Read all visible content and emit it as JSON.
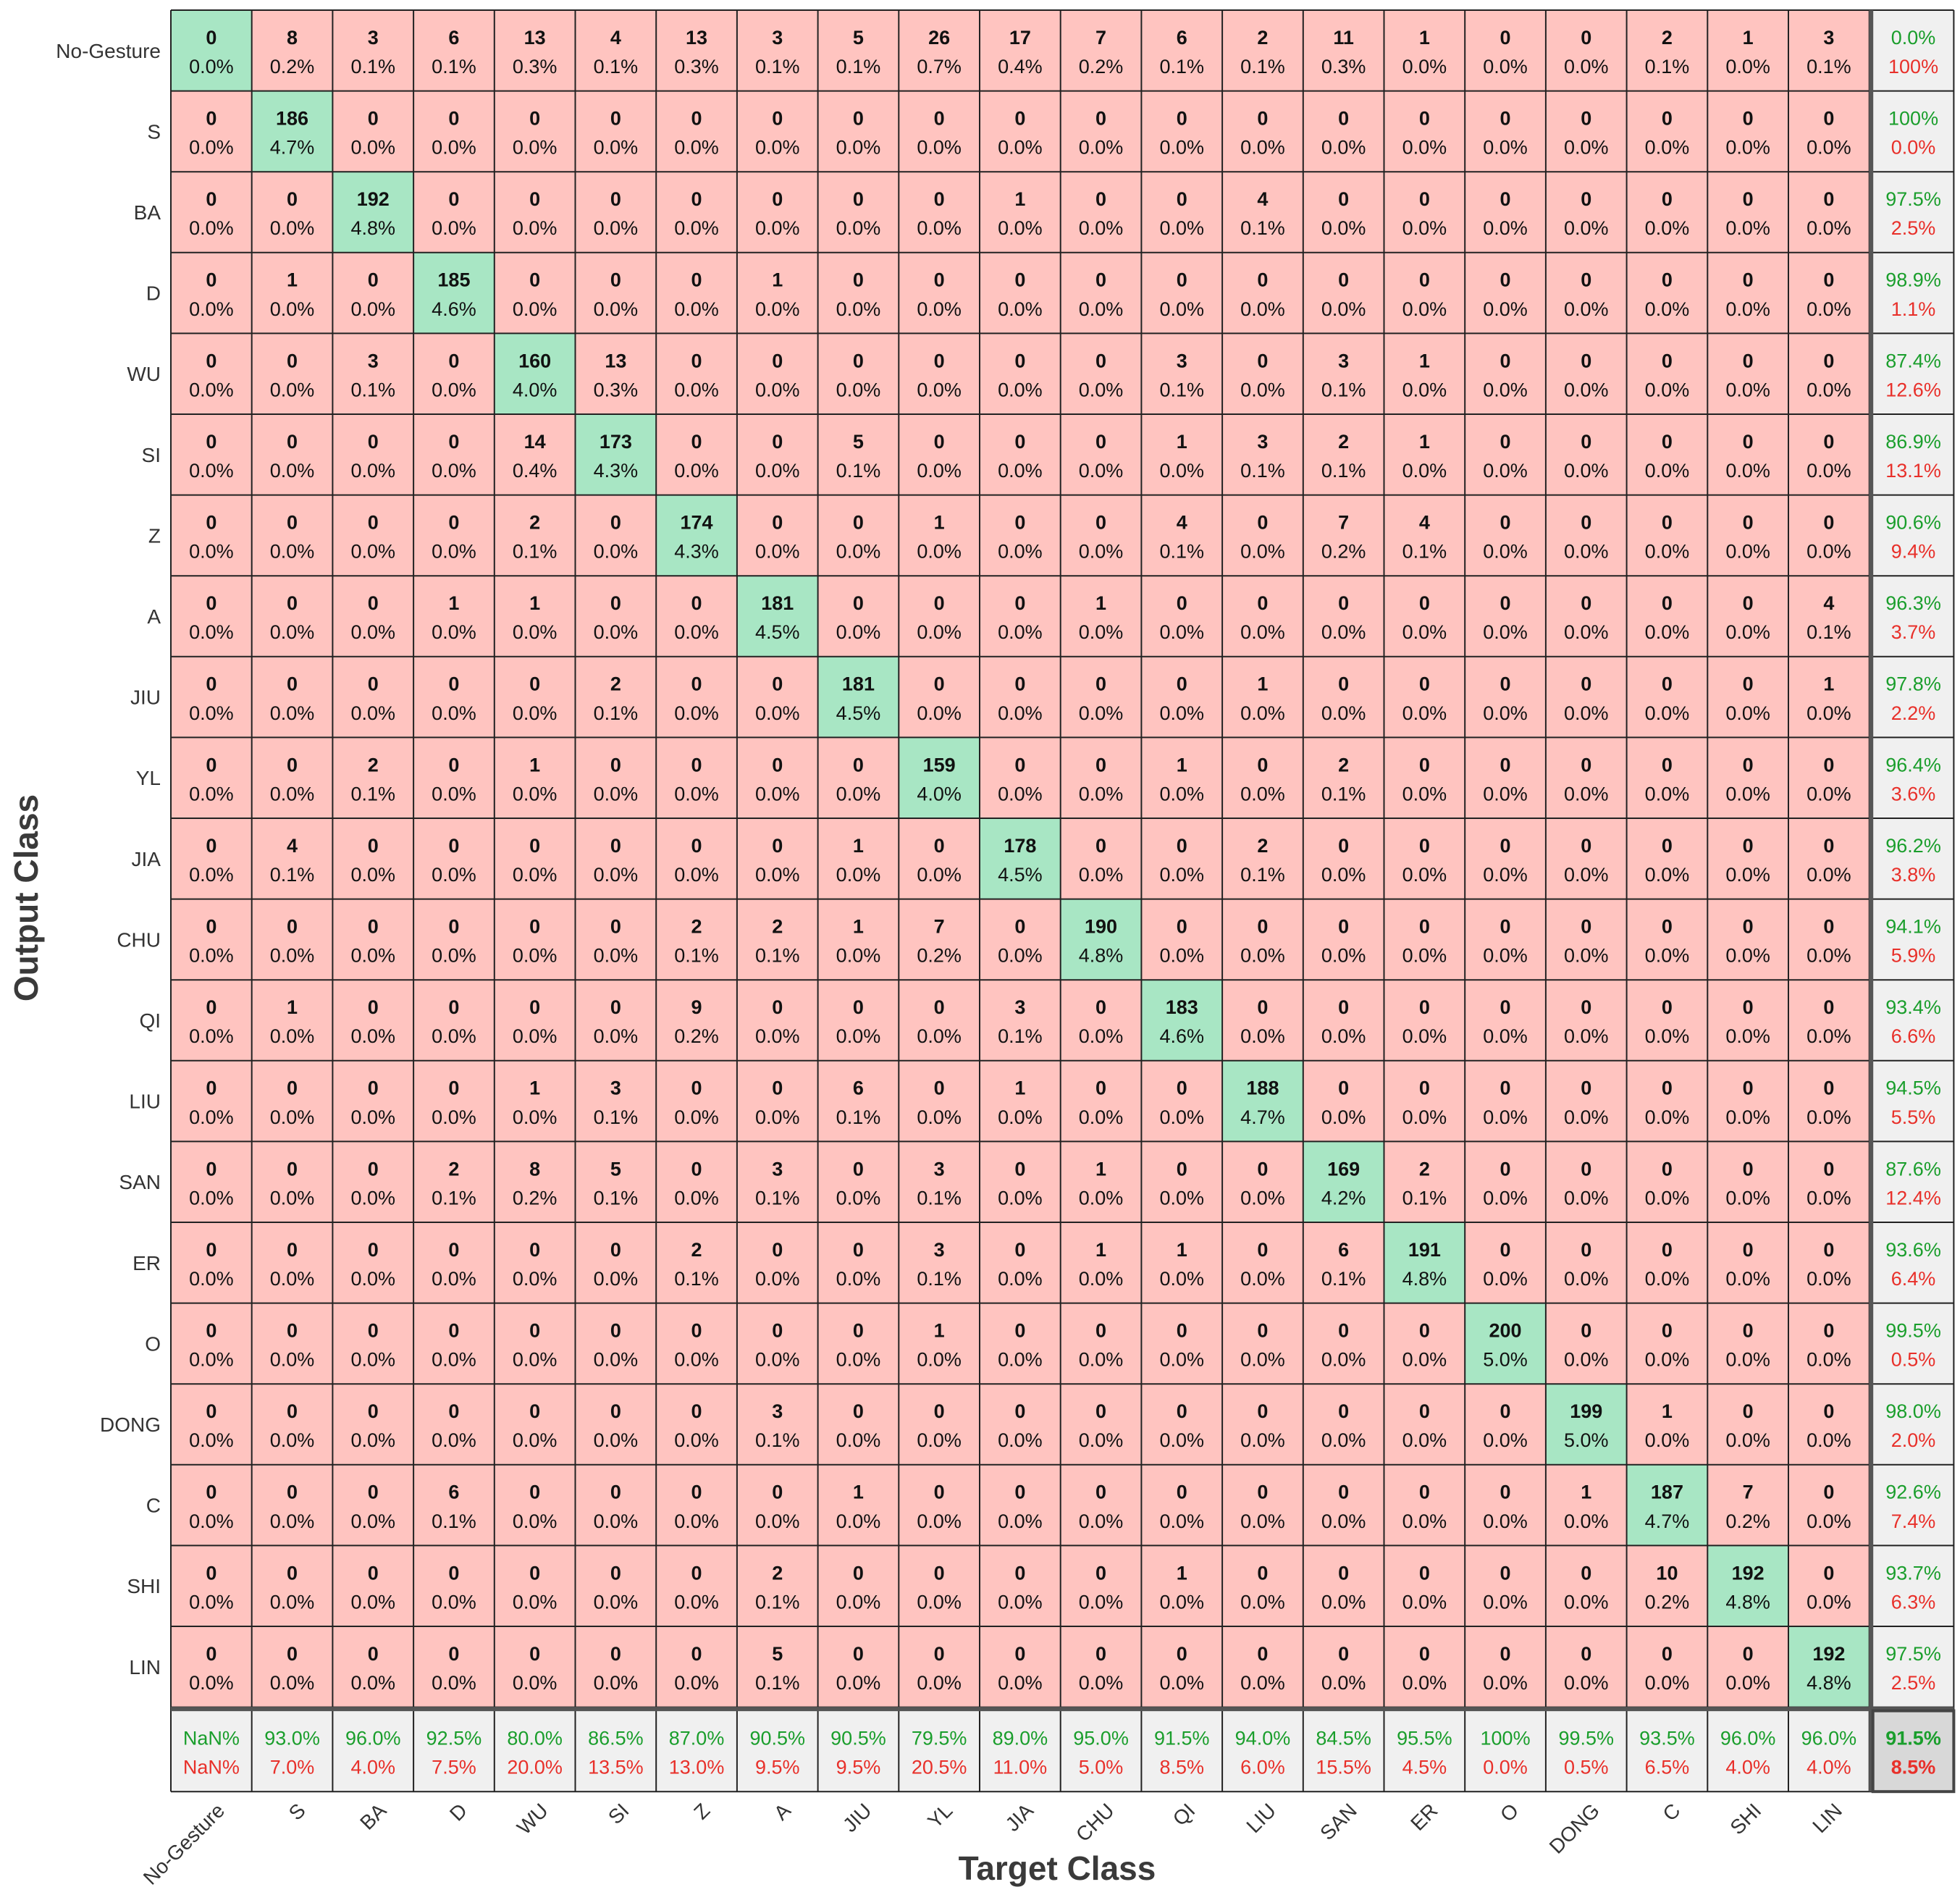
{
  "chart_data": {
    "type": "heatmap",
    "subtype": "confusion-matrix",
    "xlabel": "Target Class",
    "ylabel": "Output Class",
    "classes": [
      "No-Gesture",
      "S",
      "BA",
      "D",
      "WU",
      "SI",
      "Z",
      "A",
      "JIU",
      "YL",
      "JIA",
      "CHU",
      "QI",
      "LIU",
      "SAN",
      "ER",
      "O",
      "DONG",
      "C",
      "SHI",
      "LIN"
    ],
    "counts": [
      [
        0,
        8,
        3,
        6,
        13,
        4,
        13,
        3,
        5,
        26,
        17,
        7,
        6,
        2,
        11,
        1,
        0,
        0,
        2,
        1,
        3
      ],
      [
        0,
        186,
        0,
        0,
        0,
        0,
        0,
        0,
        0,
        0,
        0,
        0,
        0,
        0,
        0,
        0,
        0,
        0,
        0,
        0,
        0
      ],
      [
        0,
        0,
        192,
        0,
        0,
        0,
        0,
        0,
        0,
        0,
        1,
        0,
        0,
        4,
        0,
        0,
        0,
        0,
        0,
        0,
        0
      ],
      [
        0,
        1,
        0,
        185,
        0,
        0,
        0,
        1,
        0,
        0,
        0,
        0,
        0,
        0,
        0,
        0,
        0,
        0,
        0,
        0,
        0
      ],
      [
        0,
        0,
        3,
        0,
        160,
        13,
        0,
        0,
        0,
        0,
        0,
        0,
        3,
        0,
        3,
        1,
        0,
        0,
        0,
        0,
        0
      ],
      [
        0,
        0,
        0,
        0,
        14,
        173,
        0,
        0,
        5,
        0,
        0,
        0,
        1,
        3,
        2,
        1,
        0,
        0,
        0,
        0,
        0
      ],
      [
        0,
        0,
        0,
        0,
        2,
        0,
        174,
        0,
        0,
        1,
        0,
        0,
        4,
        0,
        7,
        4,
        0,
        0,
        0,
        0,
        0
      ],
      [
        0,
        0,
        0,
        1,
        1,
        0,
        0,
        181,
        0,
        0,
        0,
        1,
        0,
        0,
        0,
        0,
        0,
        0,
        0,
        0,
        4
      ],
      [
        0,
        0,
        0,
        0,
        0,
        2,
        0,
        0,
        181,
        0,
        0,
        0,
        0,
        1,
        0,
        0,
        0,
        0,
        0,
        0,
        1
      ],
      [
        0,
        0,
        2,
        0,
        1,
        0,
        0,
        0,
        0,
        159,
        0,
        0,
        1,
        0,
        2,
        0,
        0,
        0,
        0,
        0,
        0
      ],
      [
        0,
        4,
        0,
        0,
        0,
        0,
        0,
        0,
        1,
        0,
        178,
        0,
        0,
        2,
        0,
        0,
        0,
        0,
        0,
        0,
        0
      ],
      [
        0,
        0,
        0,
        0,
        0,
        0,
        2,
        2,
        1,
        7,
        0,
        190,
        0,
        0,
        0,
        0,
        0,
        0,
        0,
        0,
        0
      ],
      [
        0,
        1,
        0,
        0,
        0,
        0,
        9,
        0,
        0,
        0,
        3,
        0,
        183,
        0,
        0,
        0,
        0,
        0,
        0,
        0,
        0
      ],
      [
        0,
        0,
        0,
        0,
        1,
        3,
        0,
        0,
        6,
        0,
        1,
        0,
        0,
        188,
        0,
        0,
        0,
        0,
        0,
        0,
        0
      ],
      [
        0,
        0,
        0,
        2,
        8,
        5,
        0,
        3,
        0,
        3,
        0,
        1,
        0,
        0,
        169,
        2,
        0,
        0,
        0,
        0,
        0
      ],
      [
        0,
        0,
        0,
        0,
        0,
        0,
        2,
        0,
        0,
        3,
        0,
        1,
        1,
        0,
        6,
        191,
        0,
        0,
        0,
        0,
        0
      ],
      [
        0,
        0,
        0,
        0,
        0,
        0,
        0,
        0,
        0,
        1,
        0,
        0,
        0,
        0,
        0,
        0,
        200,
        0,
        0,
        0,
        0
      ],
      [
        0,
        0,
        0,
        0,
        0,
        0,
        0,
        3,
        0,
        0,
        0,
        0,
        0,
        0,
        0,
        0,
        0,
        199,
        1,
        0,
        0
      ],
      [
        0,
        0,
        0,
        6,
        0,
        0,
        0,
        0,
        1,
        0,
        0,
        0,
        0,
        0,
        0,
        0,
        0,
        1,
        187,
        7,
        0
      ],
      [
        0,
        0,
        0,
        0,
        0,
        0,
        0,
        2,
        0,
        0,
        0,
        0,
        1,
        0,
        0,
        0,
        0,
        0,
        10,
        192,
        0
      ],
      [
        0,
        0,
        0,
        0,
        0,
        0,
        0,
        5,
        0,
        0,
        0,
        0,
        0,
        0,
        0,
        0,
        0,
        0,
        0,
        0,
        192
      ]
    ],
    "percents": [
      [
        "0.0%",
        "0.2%",
        "0.1%",
        "0.1%",
        "0.3%",
        "0.1%",
        "0.3%",
        "0.1%",
        "0.1%",
        "0.7%",
        "0.4%",
        "0.2%",
        "0.1%",
        "0.1%",
        "0.3%",
        "0.0%",
        "0.0%",
        "0.0%",
        "0.1%",
        "0.0%",
        "0.1%"
      ],
      [
        "0.0%",
        "4.7%",
        "0.0%",
        "0.0%",
        "0.0%",
        "0.0%",
        "0.0%",
        "0.0%",
        "0.0%",
        "0.0%",
        "0.0%",
        "0.0%",
        "0.0%",
        "0.0%",
        "0.0%",
        "0.0%",
        "0.0%",
        "0.0%",
        "0.0%",
        "0.0%",
        "0.0%"
      ],
      [
        "0.0%",
        "0.0%",
        "4.8%",
        "0.0%",
        "0.0%",
        "0.0%",
        "0.0%",
        "0.0%",
        "0.0%",
        "0.0%",
        "0.0%",
        "0.0%",
        "0.0%",
        "0.1%",
        "0.0%",
        "0.0%",
        "0.0%",
        "0.0%",
        "0.0%",
        "0.0%",
        "0.0%"
      ],
      [
        "0.0%",
        "0.0%",
        "0.0%",
        "4.6%",
        "0.0%",
        "0.0%",
        "0.0%",
        "0.0%",
        "0.0%",
        "0.0%",
        "0.0%",
        "0.0%",
        "0.0%",
        "0.0%",
        "0.0%",
        "0.0%",
        "0.0%",
        "0.0%",
        "0.0%",
        "0.0%",
        "0.0%"
      ],
      [
        "0.0%",
        "0.0%",
        "0.1%",
        "0.0%",
        "4.0%",
        "0.3%",
        "0.0%",
        "0.0%",
        "0.0%",
        "0.0%",
        "0.0%",
        "0.0%",
        "0.1%",
        "0.0%",
        "0.1%",
        "0.0%",
        "0.0%",
        "0.0%",
        "0.0%",
        "0.0%",
        "0.0%"
      ],
      [
        "0.0%",
        "0.0%",
        "0.0%",
        "0.0%",
        "0.4%",
        "4.3%",
        "0.0%",
        "0.0%",
        "0.1%",
        "0.0%",
        "0.0%",
        "0.0%",
        "0.0%",
        "0.1%",
        "0.1%",
        "0.0%",
        "0.0%",
        "0.0%",
        "0.0%",
        "0.0%",
        "0.0%"
      ],
      [
        "0.0%",
        "0.0%",
        "0.0%",
        "0.0%",
        "0.1%",
        "0.0%",
        "4.3%",
        "0.0%",
        "0.0%",
        "0.0%",
        "0.0%",
        "0.0%",
        "0.1%",
        "0.0%",
        "0.2%",
        "0.1%",
        "0.0%",
        "0.0%",
        "0.0%",
        "0.0%",
        "0.0%"
      ],
      [
        "0.0%",
        "0.0%",
        "0.0%",
        "0.0%",
        "0.0%",
        "0.0%",
        "0.0%",
        "4.5%",
        "0.0%",
        "0.0%",
        "0.0%",
        "0.0%",
        "0.0%",
        "0.0%",
        "0.0%",
        "0.0%",
        "0.0%",
        "0.0%",
        "0.0%",
        "0.0%",
        "0.1%"
      ],
      [
        "0.0%",
        "0.0%",
        "0.0%",
        "0.0%",
        "0.0%",
        "0.1%",
        "0.0%",
        "0.0%",
        "4.5%",
        "0.0%",
        "0.0%",
        "0.0%",
        "0.0%",
        "0.0%",
        "0.0%",
        "0.0%",
        "0.0%",
        "0.0%",
        "0.0%",
        "0.0%",
        "0.0%"
      ],
      [
        "0.0%",
        "0.0%",
        "0.1%",
        "0.0%",
        "0.0%",
        "0.0%",
        "0.0%",
        "0.0%",
        "0.0%",
        "4.0%",
        "0.0%",
        "0.0%",
        "0.0%",
        "0.0%",
        "0.1%",
        "0.0%",
        "0.0%",
        "0.0%",
        "0.0%",
        "0.0%",
        "0.0%"
      ],
      [
        "0.0%",
        "0.1%",
        "0.0%",
        "0.0%",
        "0.0%",
        "0.0%",
        "0.0%",
        "0.0%",
        "0.0%",
        "0.0%",
        "4.5%",
        "0.0%",
        "0.0%",
        "0.1%",
        "0.0%",
        "0.0%",
        "0.0%",
        "0.0%",
        "0.0%",
        "0.0%",
        "0.0%"
      ],
      [
        "0.0%",
        "0.0%",
        "0.0%",
        "0.0%",
        "0.0%",
        "0.0%",
        "0.1%",
        "0.1%",
        "0.0%",
        "0.2%",
        "0.0%",
        "4.8%",
        "0.0%",
        "0.0%",
        "0.0%",
        "0.0%",
        "0.0%",
        "0.0%",
        "0.0%",
        "0.0%",
        "0.0%"
      ],
      [
        "0.0%",
        "0.0%",
        "0.0%",
        "0.0%",
        "0.0%",
        "0.0%",
        "0.2%",
        "0.0%",
        "0.0%",
        "0.0%",
        "0.1%",
        "0.0%",
        "4.6%",
        "0.0%",
        "0.0%",
        "0.0%",
        "0.0%",
        "0.0%",
        "0.0%",
        "0.0%",
        "0.0%"
      ],
      [
        "0.0%",
        "0.0%",
        "0.0%",
        "0.0%",
        "0.0%",
        "0.1%",
        "0.0%",
        "0.0%",
        "0.1%",
        "0.0%",
        "0.0%",
        "0.0%",
        "0.0%",
        "4.7%",
        "0.0%",
        "0.0%",
        "0.0%",
        "0.0%",
        "0.0%",
        "0.0%",
        "0.0%"
      ],
      [
        "0.0%",
        "0.0%",
        "0.0%",
        "0.1%",
        "0.2%",
        "0.1%",
        "0.0%",
        "0.1%",
        "0.0%",
        "0.1%",
        "0.0%",
        "0.0%",
        "0.0%",
        "0.0%",
        "4.2%",
        "0.1%",
        "0.0%",
        "0.0%",
        "0.0%",
        "0.0%",
        "0.0%"
      ],
      [
        "0.0%",
        "0.0%",
        "0.0%",
        "0.0%",
        "0.0%",
        "0.0%",
        "0.1%",
        "0.0%",
        "0.0%",
        "0.1%",
        "0.0%",
        "0.0%",
        "0.0%",
        "0.0%",
        "0.1%",
        "4.8%",
        "0.0%",
        "0.0%",
        "0.0%",
        "0.0%",
        "0.0%"
      ],
      [
        "0.0%",
        "0.0%",
        "0.0%",
        "0.0%",
        "0.0%",
        "0.0%",
        "0.0%",
        "0.0%",
        "0.0%",
        "0.0%",
        "0.0%",
        "0.0%",
        "0.0%",
        "0.0%",
        "0.0%",
        "0.0%",
        "5.0%",
        "0.0%",
        "0.0%",
        "0.0%",
        "0.0%"
      ],
      [
        "0.0%",
        "0.0%",
        "0.0%",
        "0.0%",
        "0.0%",
        "0.0%",
        "0.0%",
        "0.1%",
        "0.0%",
        "0.0%",
        "0.0%",
        "0.0%",
        "0.0%",
        "0.0%",
        "0.0%",
        "0.0%",
        "0.0%",
        "5.0%",
        "0.0%",
        "0.0%",
        "0.0%"
      ],
      [
        "0.0%",
        "0.0%",
        "0.0%",
        "0.1%",
        "0.0%",
        "0.0%",
        "0.0%",
        "0.0%",
        "0.0%",
        "0.0%",
        "0.0%",
        "0.0%",
        "0.0%",
        "0.0%",
        "0.0%",
        "0.0%",
        "0.0%",
        "0.0%",
        "4.7%",
        "0.2%",
        "0.0%"
      ],
      [
        "0.0%",
        "0.0%",
        "0.0%",
        "0.0%",
        "0.0%",
        "0.0%",
        "0.0%",
        "0.1%",
        "0.0%",
        "0.0%",
        "0.0%",
        "0.0%",
        "0.0%",
        "0.0%",
        "0.0%",
        "0.0%",
        "0.0%",
        "0.0%",
        "0.2%",
        "4.8%",
        "0.0%"
      ],
      [
        "0.0%",
        "0.0%",
        "0.0%",
        "0.0%",
        "0.0%",
        "0.0%",
        "0.0%",
        "0.1%",
        "0.0%",
        "0.0%",
        "0.0%",
        "0.0%",
        "0.0%",
        "0.0%",
        "0.0%",
        "0.0%",
        "0.0%",
        "0.0%",
        "0.0%",
        "0.0%",
        "4.8%"
      ]
    ],
    "row_summary": [
      [
        "0.0%",
        "100%"
      ],
      [
        "100%",
        "0.0%"
      ],
      [
        "97.5%",
        "2.5%"
      ],
      [
        "98.9%",
        "1.1%"
      ],
      [
        "87.4%",
        "12.6%"
      ],
      [
        "86.9%",
        "13.1%"
      ],
      [
        "90.6%",
        "9.4%"
      ],
      [
        "96.3%",
        "3.7%"
      ],
      [
        "97.8%",
        "2.2%"
      ],
      [
        "96.4%",
        "3.6%"
      ],
      [
        "96.2%",
        "3.8%"
      ],
      [
        "94.1%",
        "5.9%"
      ],
      [
        "93.4%",
        "6.6%"
      ],
      [
        "94.5%",
        "5.5%"
      ],
      [
        "87.6%",
        "12.4%"
      ],
      [
        "93.6%",
        "6.4%"
      ],
      [
        "99.5%",
        "0.5%"
      ],
      [
        "98.0%",
        "2.0%"
      ],
      [
        "92.6%",
        "7.4%"
      ],
      [
        "93.7%",
        "6.3%"
      ],
      [
        "97.5%",
        "2.5%"
      ]
    ],
    "col_summary": [
      [
        "NaN%",
        "NaN%"
      ],
      [
        "93.0%",
        "7.0%"
      ],
      [
        "96.0%",
        "4.0%"
      ],
      [
        "92.5%",
        "7.5%"
      ],
      [
        "80.0%",
        "20.0%"
      ],
      [
        "86.5%",
        "13.5%"
      ],
      [
        "87.0%",
        "13.0%"
      ],
      [
        "90.5%",
        "9.5%"
      ],
      [
        "90.5%",
        "9.5%"
      ],
      [
        "79.5%",
        "20.5%"
      ],
      [
        "89.0%",
        "11.0%"
      ],
      [
        "95.0%",
        "5.0%"
      ],
      [
        "91.5%",
        "8.5%"
      ],
      [
        "94.0%",
        "6.0%"
      ],
      [
        "84.5%",
        "15.5%"
      ],
      [
        "95.5%",
        "4.5%"
      ],
      [
        "100%",
        "0.0%"
      ],
      [
        "99.5%",
        "0.5%"
      ],
      [
        "93.5%",
        "6.5%"
      ],
      [
        "96.0%",
        "4.0%"
      ],
      [
        "96.0%",
        "4.0%"
      ]
    ],
    "overall": [
      "91.5%",
      "8.5%"
    ],
    "colors": {
      "diagonal": "#a8e6c4",
      "off_diagonal": "#ffc4c0",
      "summary": "#f0f0f0",
      "overall": "#d8d8d8",
      "correct_text": "#1a9e2c",
      "error_text": "#e8302a",
      "text": "#111111",
      "label": "#333333",
      "axis_title": "#3a3a3a",
      "grid": "#222222"
    }
  }
}
